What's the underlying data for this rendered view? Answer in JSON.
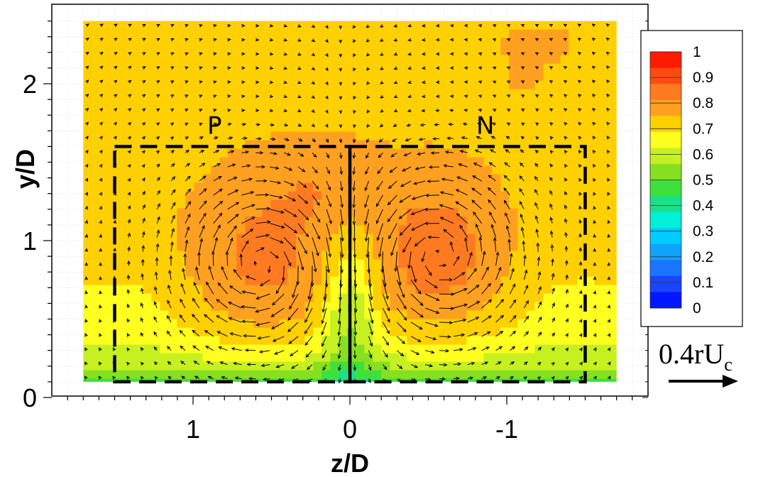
{
  "chart_data": {
    "type": "heatmap",
    "xlabel": "z/D",
    "ylabel": "y/D",
    "xlim": [
      1.8,
      -1.9
    ],
    "ylim": [
      0,
      2.45
    ],
    "x_reversed": true,
    "x_ticks": [
      1,
      0,
      -1
    ],
    "x_tick_labels": [
      "1",
      "0",
      "-1"
    ],
    "y_ticks": [
      0,
      1,
      2
    ],
    "y_tick_labels": [
      "0",
      "1",
      "2"
    ],
    "grid": true,
    "field_extent": {
      "z": [
        1.7,
        -1.7
      ],
      "y": [
        0.1,
        2.4
      ]
    },
    "background_level": 0.75,
    "regions": [
      {
        "label": "P",
        "z": [
          1.5,
          0
        ],
        "y": [
          0.1,
          1.6
        ]
      },
      {
        "label": "N",
        "z": [
          0,
          -1.5
        ],
        "y": [
          0.1,
          1.6
        ]
      }
    ],
    "vortices": [
      {
        "region": "P",
        "center": [
          0.55,
          0.85
        ],
        "sense": "clockwise"
      },
      {
        "region": "N",
        "center": [
          -0.55,
          0.9
        ],
        "sense": "counterclockwise"
      }
    ],
    "colorbar": {
      "ticks": [
        1,
        0.9,
        0.8,
        0.7,
        0.6,
        0.5,
        0.4,
        0.3,
        0.2,
        0.1,
        0
      ],
      "tick_labels": [
        "1",
        "0.9",
        "0.8",
        "0.7",
        "0.6",
        "0.5",
        "0.4",
        "0.3",
        "0.2",
        "0.1",
        "0"
      ],
      "colors": [
        "#ff1a00",
        "#ff4a10",
        "#ff7a20",
        "#ffa020",
        "#ffd000",
        "#ffff20",
        "#c6f020",
        "#86e020",
        "#3ee03c",
        "#1be08a",
        "#00f0d8",
        "#00ccff",
        "#10a4ff",
        "#1a74ff",
        "#1a44ff",
        "#0018ff"
      ]
    },
    "reference_vector": {
      "label": "0.4rU",
      "subscript": "c"
    }
  }
}
